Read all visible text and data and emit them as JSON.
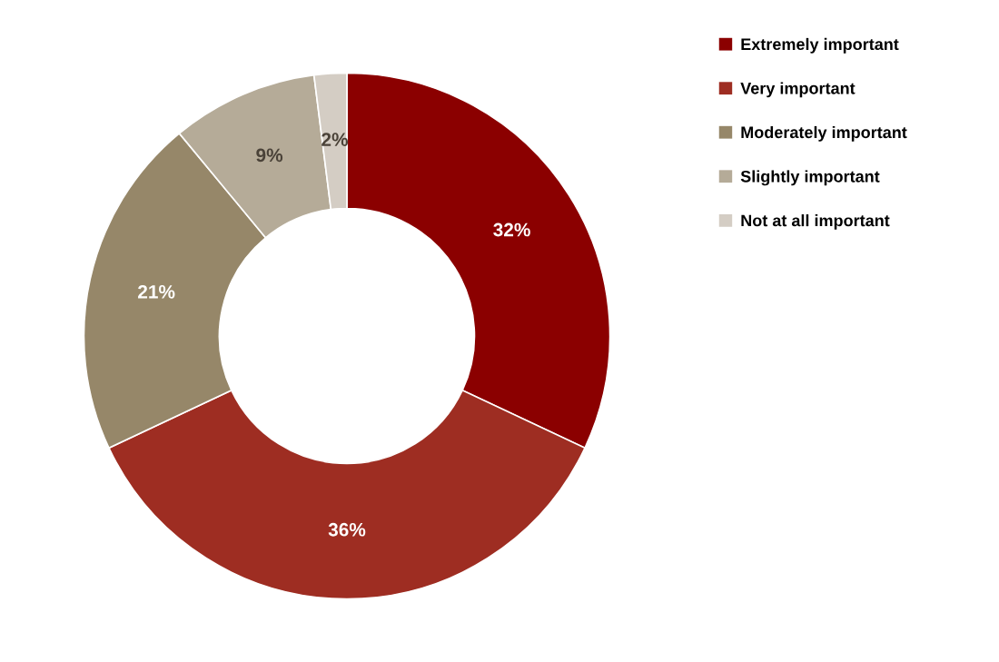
{
  "chart_data": {
    "type": "donut",
    "categories": [
      "Extremely important",
      "Very important",
      "Moderately important",
      "Slightly important",
      "Not at all important"
    ],
    "values": [
      32,
      36,
      21,
      9,
      2
    ],
    "colors": [
      "#8b0000",
      "#9e2d22",
      "#968769",
      "#b5ab98",
      "#d4cdc4"
    ],
    "value_labels": [
      "32%",
      "36%",
      "21%",
      "9%",
      "2%"
    ],
    "legend": "right"
  }
}
